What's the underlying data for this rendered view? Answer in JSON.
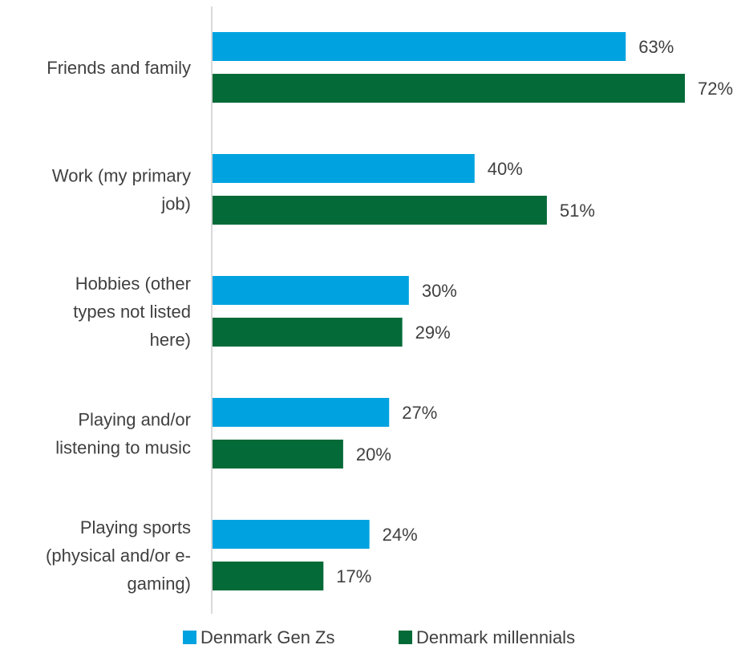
{
  "chart_data": {
    "type": "bar",
    "orientation": "horizontal",
    "categories": [
      "Friends and family",
      "Work (my primary job)",
      "Hobbies (other types not listed here)",
      "Playing and/or listening to music",
      "Playing sports (physical and/or e-gaming)"
    ],
    "category_label_lines": [
      [
        "Friends and family"
      ],
      [
        "Work (my primary",
        "job)"
      ],
      [
        "Hobbies (other",
        "types not listed",
        "here)"
      ],
      [
        "Playing and/or",
        "listening to music"
      ],
      [
        "Playing sports",
        "(physical and/or e-",
        "gaming)"
      ]
    ],
    "series": [
      {
        "name": "Denmark Gen Zs",
        "values": [
          63,
          40,
          30,
          27,
          24
        ],
        "labels": [
          "63%",
          "40%",
          "30%",
          "27%",
          "24%"
        ],
        "color": "#00A3E0"
      },
      {
        "name": "Denmark millennials",
        "values": [
          72,
          51,
          29,
          20,
          17
        ],
        "labels": [
          "72%",
          "51%",
          "29%",
          "20%",
          "17%"
        ],
        "color": "#046A38"
      }
    ],
    "xlim": [
      0,
      72
    ],
    "title": "",
    "xlabel": "",
    "ylabel": "",
    "grid": false,
    "legend": "bottom",
    "axis_color": "#D9D9D9",
    "label_color": "#404040"
  }
}
